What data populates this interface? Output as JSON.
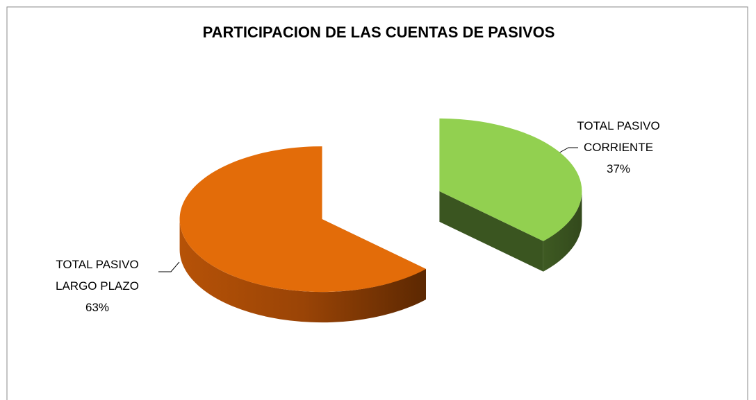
{
  "chart_data": {
    "type": "pie3d",
    "title": "PARTICIPACION DE LAS CUENTAS DE PASIVOS",
    "categories": [
      "TOTAL PASIVO CORRIENTE",
      "TOTAL PASIVO LARGO PLAZO"
    ],
    "values": [
      37,
      63
    ],
    "value_labels": [
      "37%",
      "63%"
    ],
    "colors": [
      "#92d050",
      "#e36c09"
    ]
  }
}
